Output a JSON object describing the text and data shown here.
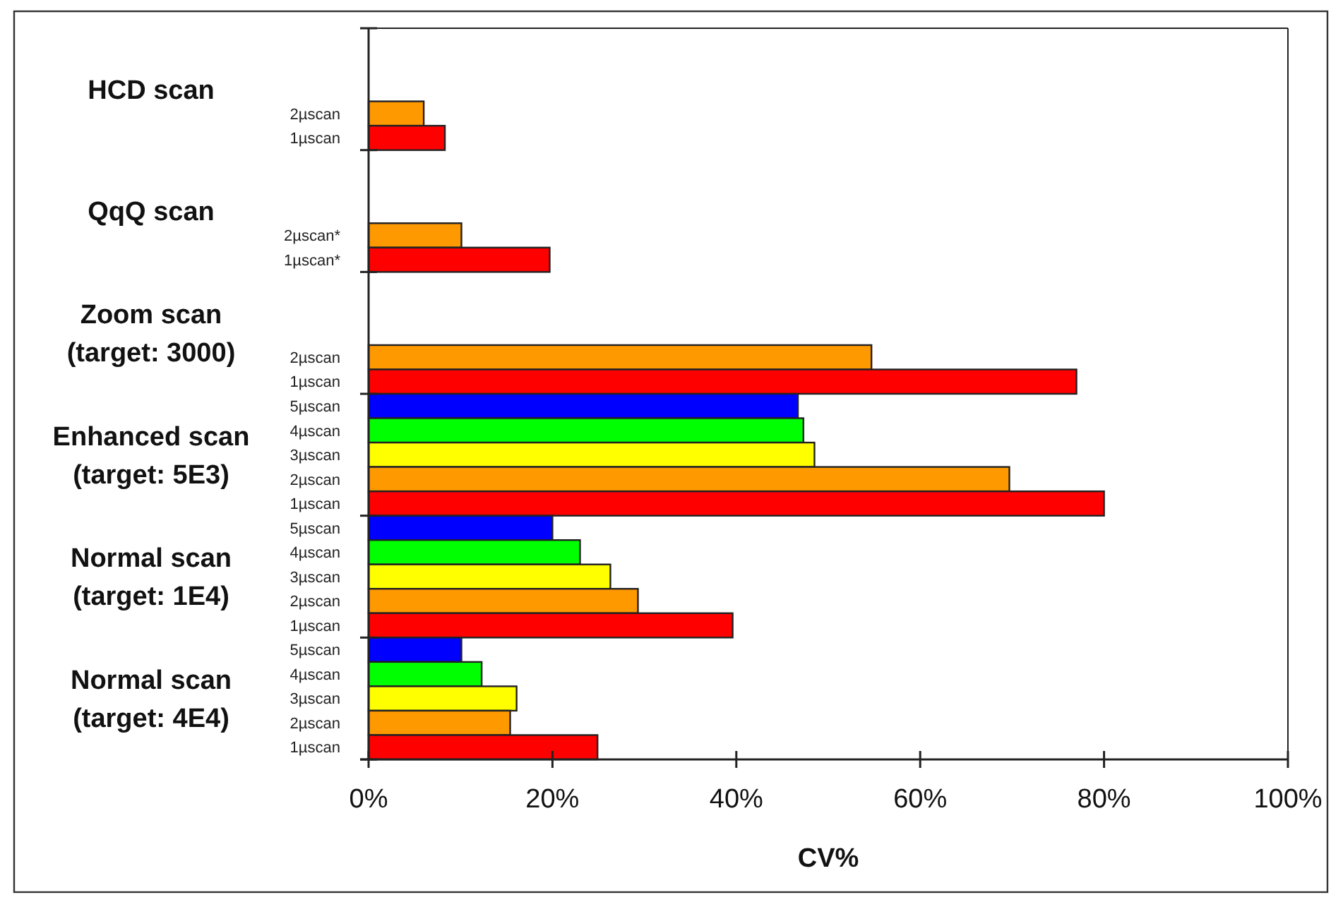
{
  "chart_data": {
    "type": "bar",
    "orientation": "horizontal",
    "xlabel": "CV%",
    "categories": [
      null,
      null,
      null,
      "2µscan",
      "1µscan",
      null,
      null,
      null,
      "2µscan*",
      "1µscan*",
      null,
      null,
      null,
      "2µscan",
      "1µscan",
      "5µscan",
      "4µscan",
      "3µscan",
      "2µscan",
      "1µscan",
      "5µscan",
      "4µscan",
      "3µscan",
      "2µscan",
      "1µscan",
      "5µscan",
      "4µscan",
      "3µscan",
      "2µscan",
      "1µscan"
    ],
    "values": [
      null,
      null,
      null,
      6.0,
      8.3,
      null,
      null,
      null,
      10.1,
      19.7,
      null,
      null,
      null,
      54.7,
      77.0,
      46.7,
      47.3,
      48.5,
      69.7,
      80.0,
      20.0,
      23.0,
      26.3,
      29.3,
      39.6,
      10.1,
      12.3,
      16.1,
      15.4,
      24.9
    ],
    "colors": [
      null,
      null,
      null,
      "#ff9900",
      "#ff0000",
      null,
      null,
      null,
      "#ff9900",
      "#ff0000",
      null,
      null,
      null,
      "#ff9900",
      "#ff0000",
      "#0000ff",
      "#00ff00",
      "#ffff00",
      "#ff9900",
      "#ff0000",
      "#0000ff",
      "#00ff00",
      "#ffff00",
      "#ff9900",
      "#ff0000",
      "#0000ff",
      "#00ff00",
      "#ffff00",
      "#ff9900",
      "#ff0000"
    ],
    "xlim": [
      0,
      100
    ],
    "xticks": [
      {
        "value": 0,
        "label": "0%"
      },
      {
        "value": 20,
        "label": "20%"
      },
      {
        "value": 40,
        "label": "40%"
      },
      {
        "value": 60,
        "label": "60%"
      },
      {
        "value": 80,
        "label": "80%"
      },
      {
        "value": 100,
        "label": "100%"
      }
    ],
    "annotations": [
      "HCD scan",
      "QqQ scan",
      "Zoom scan\n(target: 3000)",
      "Enhanced scan\n(target: 5E3)",
      "Normal scan\n(target: 1E4)",
      "Normal scan\n(target: 4E4)"
    ],
    "grid": false
  }
}
